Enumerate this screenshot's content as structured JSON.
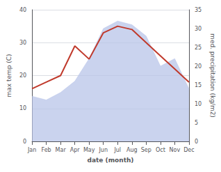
{
  "chart_data": {
    "type": "line",
    "xlabel": "date (month)",
    "ylabel": "max temp (C)",
    "y2label": "med. precipitation (kg/m2)",
    "categories": [
      "Jan",
      "Feb",
      "Mar",
      "Apr",
      "May",
      "Jun",
      "Jul",
      "Aug",
      "Sep",
      "Oct",
      "Nov",
      "Dec"
    ],
    "series": [
      {
        "type": "area",
        "axis": "y2",
        "color": "#b8c4e8",
        "values": [
          12,
          11,
          13,
          16,
          22,
          30,
          32,
          31,
          28,
          20,
          22,
          14
        ]
      },
      {
        "type": "line",
        "color": "#c0392b",
        "values": [
          16,
          18,
          20,
          29,
          25,
          33,
          35,
          34,
          30,
          26,
          22,
          18
        ]
      }
    ],
    "ylim": [
      0,
      40
    ],
    "yticks": [
      0,
      10,
      20,
      30,
      40
    ],
    "y2lim": [
      0,
      35
    ],
    "y2ticks": [
      0,
      5,
      10,
      15,
      20,
      25,
      30,
      35
    ],
    "grid": true
  }
}
